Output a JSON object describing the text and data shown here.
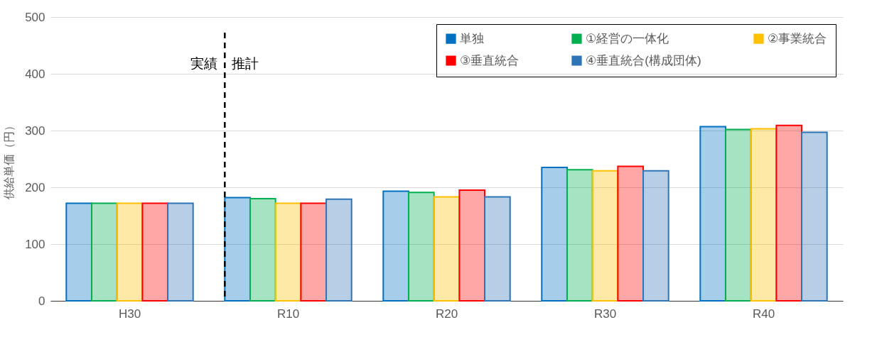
{
  "chart_data": {
    "type": "bar",
    "ylabel": "供給単価（円）",
    "categories": [
      "H30",
      "R10",
      "R20",
      "R30",
      "R40"
    ],
    "series": [
      {
        "name": "単独",
        "color": "#0070c0",
        "values": [
          172,
          182,
          193,
          235,
          307
        ]
      },
      {
        "name": "①経営の一体化",
        "color": "#00b050",
        "values": [
          172,
          180,
          191,
          231,
          302
        ]
      },
      {
        "name": "②事業統合",
        "color": "#ffc000",
        "values": [
          172,
          172,
          183,
          229,
          303
        ]
      },
      {
        "name": "③垂直統合",
        "color": "#ff0000",
        "values": [
          172,
          172,
          195,
          237,
          309
        ]
      },
      {
        "name": "④垂直統合(構成団体)",
        "color": "#2e75b6",
        "values": [
          172,
          179,
          183,
          229,
          297
        ]
      }
    ],
    "ylim": [
      0,
      500
    ],
    "yticks": [
      0,
      100,
      200,
      300,
      400,
      500
    ],
    "grid": "y",
    "legend": "top right",
    "ref_lines": [
      {
        "axis": "x",
        "value": "R10",
        "color": "#000000",
        "line_style": "dashed"
      }
    ],
    "annotations": [
      "実績",
      "推計"
    ]
  }
}
